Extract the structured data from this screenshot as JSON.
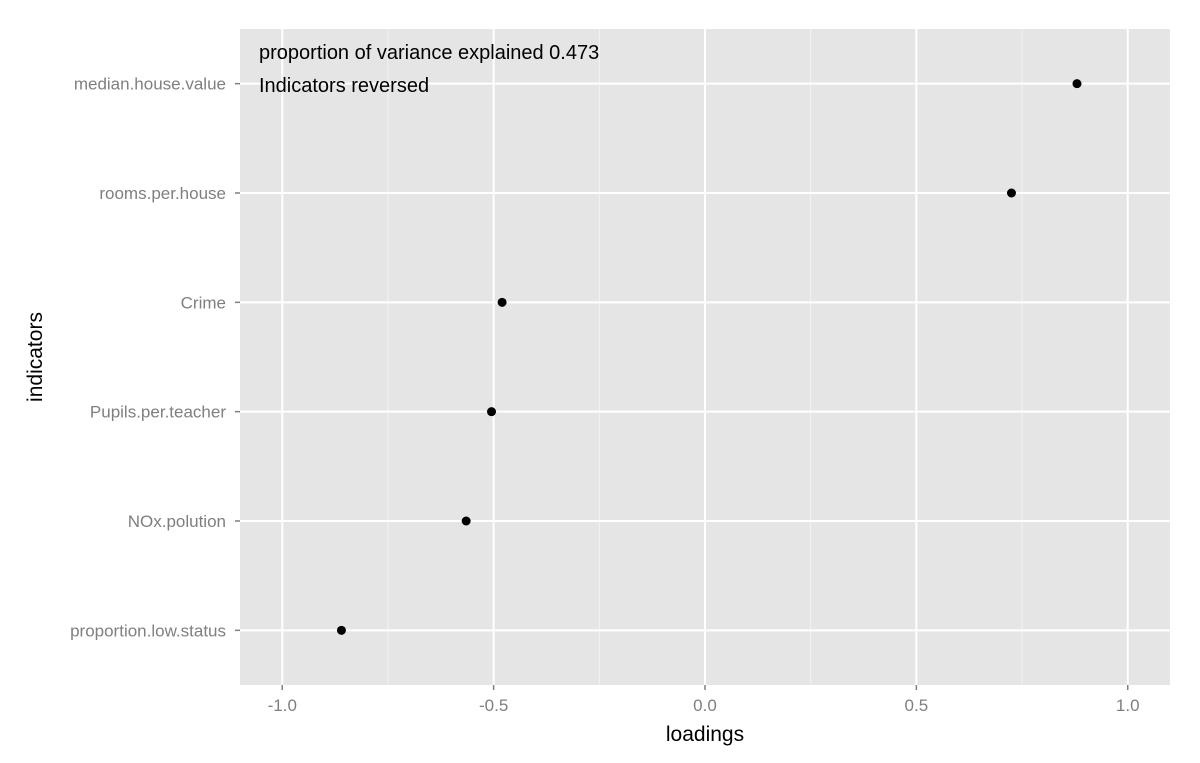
{
  "chart_data": {
    "type": "scatter",
    "title": "",
    "xlabel": "loadings",
    "ylabel": "indicators",
    "xlim": [
      -1.1,
      1.1
    ],
    "x_ticks": [
      -1.0,
      -0.5,
      0.0,
      0.5,
      1.0
    ],
    "x_tick_labels": [
      "-1.0",
      "-0.5",
      "0.0",
      "0.5",
      "1.0"
    ],
    "categories": [
      "median.house.value",
      "rooms.per.house",
      "Crime",
      "Pupils.per.teacher",
      "NOx.polution",
      "proportion.low.status"
    ],
    "values": [
      0.88,
      0.725,
      -0.48,
      -0.505,
      -0.565,
      -0.86
    ],
    "annotations": [
      "proportion of variance explained 0.473",
      "Indicators reversed"
    ],
    "grid": true,
    "legend": "none",
    "colors": {
      "panel_background": "#e5e5e5",
      "grid_major": "#ffffff",
      "grid_minor": "#f2f2f2",
      "point": "#000000",
      "tick_label": "#7f7f7f"
    }
  }
}
